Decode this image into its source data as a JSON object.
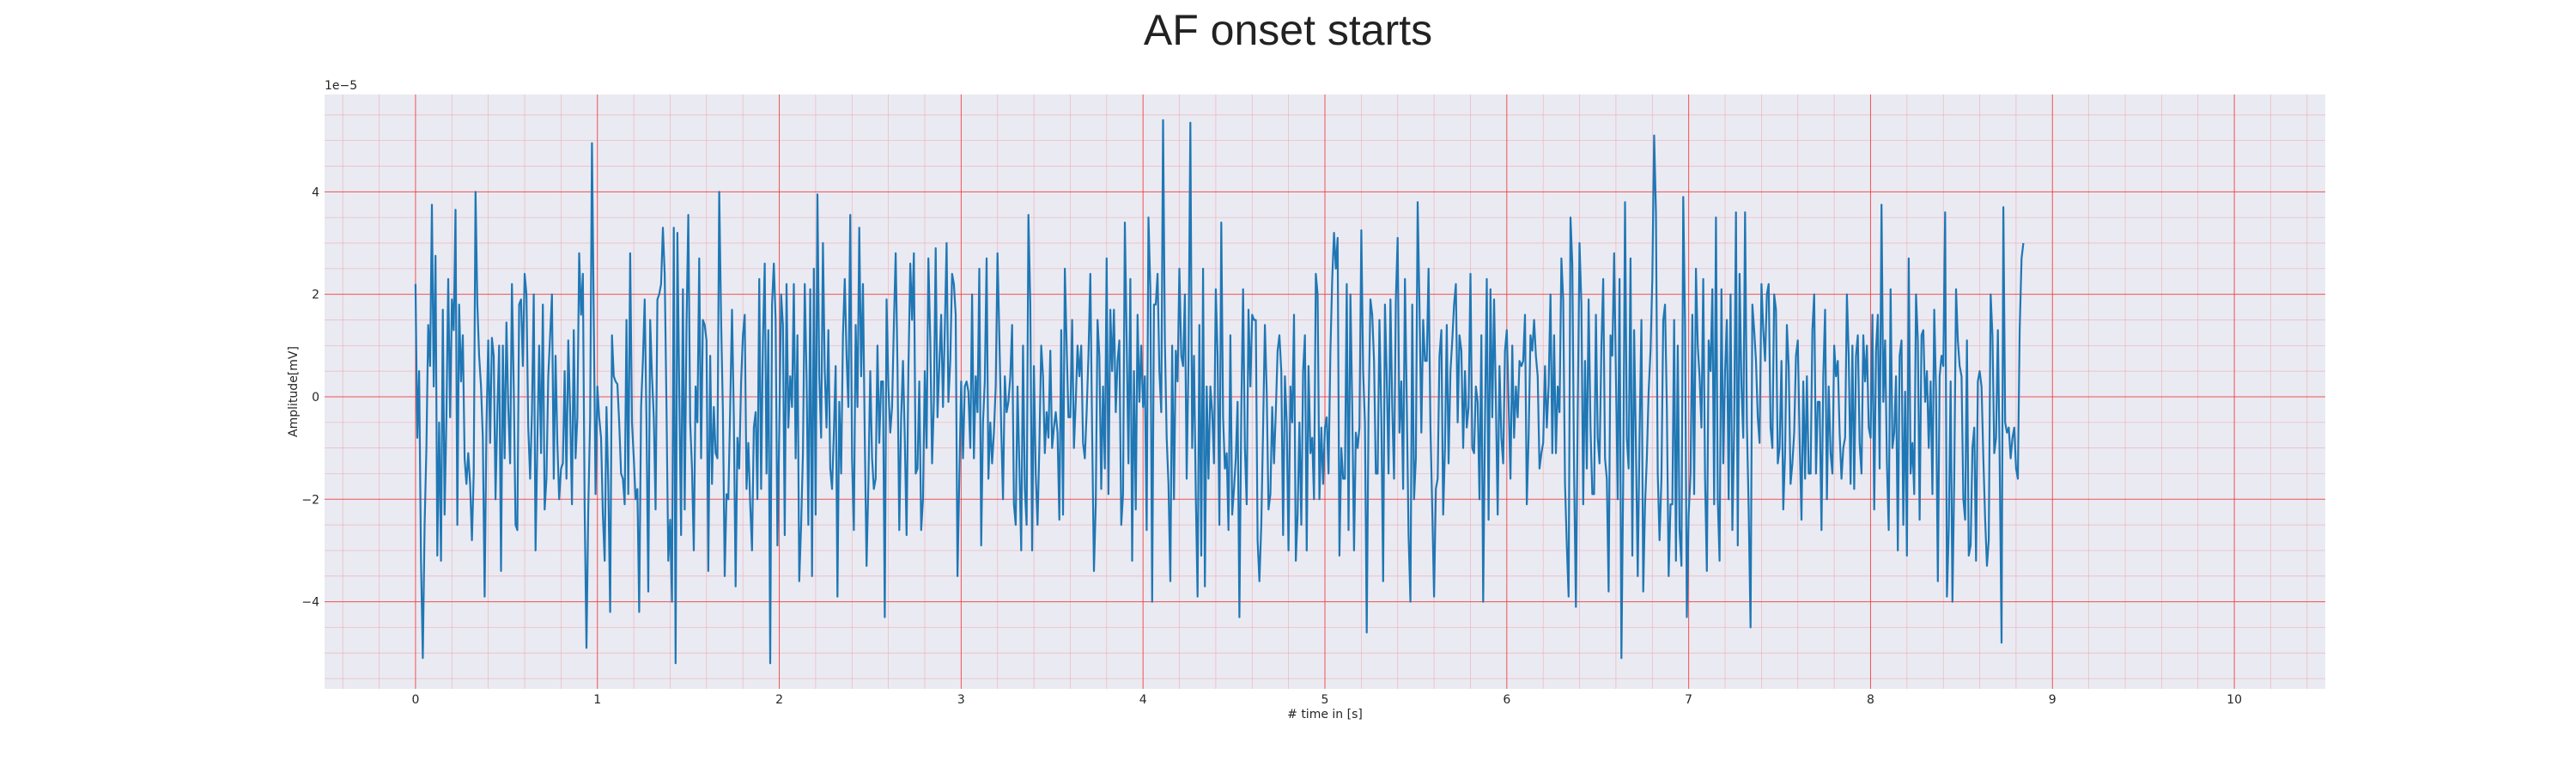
{
  "chart_data": {
    "type": "line",
    "title": "AF onset starts",
    "xlabel": "# time in [s]",
    "ylabel": "Amplitude[mV]",
    "y_offset_label": "1e−5",
    "xlim": [
      -0.5,
      10.5
    ],
    "ylim": [
      -5.7,
      5.9
    ],
    "y_scale_factor": 1e-05,
    "x_ticks": [
      0,
      1,
      2,
      3,
      4,
      5,
      6,
      7,
      8,
      9,
      10
    ],
    "x_tick_labels": [
      "0",
      "1",
      "2",
      "3",
      "4",
      "5",
      "6",
      "7",
      "8",
      "9",
      "10"
    ],
    "y_ticks": [
      -4,
      -2,
      0,
      2,
      4
    ],
    "y_tick_labels": [
      "−4",
      "−2",
      "0",
      "2",
      "4"
    ],
    "grid": true,
    "minor_grid": true,
    "legend": "none",
    "colors": {
      "plot_background": "#eaeaf2",
      "series": "#1f77b4",
      "major_grid": "#ee3a3a",
      "minor_grid": "#f2a0a8"
    },
    "series": [
      {
        "sampling_rate_hz": 100,
        "x_start": 0,
        "values": [
          2.2,
          -0.8,
          0.5,
          -3.2,
          -5.1,
          -2.5,
          -1.0,
          1.4,
          0.6,
          3.75,
          0.2,
          2.75,
          -3.1,
          -0.5,
          -3.2,
          1.7,
          -2.3,
          -0.4,
          2.3,
          -0.4,
          1.9,
          1.3,
          3.65,
          -2.5,
          1.8,
          0.3,
          1.2,
          -1.2,
          -1.7,
          -1.1,
          -1.7,
          -2.8,
          -1.5,
          4.0,
          1.8,
          0.8,
          0.2,
          -0.8,
          -3.9,
          -0.6,
          1.1,
          -0.9,
          1.15,
          0.8,
          -2.0,
          -0.3,
          1.0,
          -3.4,
          1.0,
          -1.2,
          1.45,
          -0.2,
          -1.3,
          2.2,
          0.2,
          -2.5,
          -2.6,
          1.8,
          1.9,
          0.6,
          2.4,
          2.0,
          -0.6,
          -1.6,
          -0.3,
          2.0,
          -3.0,
          -0.9,
          1.0,
          -1.1,
          1.8,
          -2.2,
          -1.6,
          0.4,
          1.2,
          2.0,
          -1.6,
          0.8,
          -0.9,
          -2.0,
          -1.4,
          -1.3,
          0.5,
          -1.6,
          1.1,
          -0.3,
          -2.1,
          1.3,
          -1.2,
          -0.4,
          2.8,
          1.6,
          2.4,
          -2.2,
          -4.9,
          -2.2,
          -0.4,
          4.95,
          1.5,
          -1.9,
          0.2,
          -0.4,
          -0.8,
          -2.3,
          -3.2,
          -0.2,
          -1.7,
          -4.2,
          1.2,
          0.4,
          0.3,
          0.25,
          -0.5,
          -1.5,
          -1.6,
          -2.1,
          1.5,
          -1.9,
          2.8,
          -0.5,
          -1.2,
          -2.0,
          -1.8,
          -4.2,
          -0.2,
          0.7,
          1.9,
          -0.5,
          -3.8,
          1.5,
          0.4,
          -0.4,
          -2.2,
          1.9,
          2.0,
          2.2,
          3.3,
          2.4,
          -0.2,
          -3.2,
          -2.4,
          -4.0,
          3.3,
          -5.2,
          3.2,
          0.2,
          -2.7,
          2.1,
          -2.2,
          1.4,
          3.55,
          -0.5,
          -1.4,
          -3.0,
          0.2,
          -0.5,
          2.7,
          -1.2,
          1.5,
          1.4,
          1.1,
          -3.4,
          0.8,
          -1.7,
          -0.2,
          -1.1,
          -1.2,
          4.0,
          1.5,
          -0.3,
          -3.5,
          -1.9,
          -2.0,
          -0.2,
          1.7,
          -0.4,
          -3.7,
          -0.8,
          -1.4,
          0.3,
          1.2,
          1.6,
          -1.8,
          -0.9,
          -2.1,
          -3.0,
          -0.6,
          -0.3,
          -2.0,
          2.3,
          -1.8,
          1.1,
          2.6,
          -1.5,
          1.3,
          -5.2,
          1.8,
          2.6,
          1.5,
          -2.9,
          -0.7,
          2.0,
          1.4,
          -2.7,
          2.2,
          -0.6,
          0.4,
          -0.2,
          2.2,
          -1.2,
          1.2,
          -3.6,
          -2.5,
          -1.1,
          2.2,
          0.4,
          -2.5,
          2.1,
          -3.5,
          2.5,
          -2.3,
          3.95,
          0.4,
          -0.8,
          3.0,
          0.5,
          -0.6,
          1.3,
          -1.4,
          -1.8,
          -0.7,
          0.6,
          -3.9,
          -0.1,
          -1.5,
          1.2,
          2.3,
          0.8,
          -0.2,
          3.55,
          -1.2,
          -2.6,
          1.4,
          -0.2,
          3.3,
          0.4,
          2.2,
          -0.8,
          -3.3,
          -1.7,
          0.5,
          -1.2,
          -1.8,
          -1.6,
          1.0,
          -0.9,
          0.3,
          0.3,
          -4.3,
          1.9,
          0.2,
          -0.7,
          -0.2,
          1.4,
          2.8,
          0.6,
          -2.6,
          -0.4,
          0.7,
          -0.8,
          -2.7,
          0.5,
          2.6,
          1.5,
          2.8,
          -1.5,
          -1.4,
          0.3,
          -2.6,
          -2.0,
          0.5,
          -1.0,
          2.7,
          1.1,
          -1.3,
          -0.1,
          2.9,
          -0.4,
          0.6,
          1.6,
          -0.2,
          1.3,
          3.0,
          -0.1,
          0.7,
          2.4,
          2.2,
          1.6,
          -3.5,
          -1.6,
          0.3,
          -1.2,
          0.2,
          0.3,
          0.1,
          -1.0,
          2.0,
          -1.2,
          0.4,
          -0.3,
          2.5,
          -2.9,
          -0.5,
          0.3,
          2.7,
          -1.6,
          -0.5,
          -1.3,
          -0.7,
          0.2,
          2.8,
          1.2,
          -0.6,
          -2.0,
          0.4,
          -0.3,
          -0.1,
          0.4,
          1.4,
          -2.1,
          -2.5,
          0.2,
          -1.3,
          -3.0,
          1.0,
          -1.8,
          -2.5,
          3.55,
          1.8,
          -3.0,
          0.6,
          -1.5,
          -2.5,
          -1.0,
          1.0,
          0.4,
          -1.1,
          -0.3,
          -0.8,
          0.9,
          -1.0,
          -0.6,
          -0.3,
          -0.7,
          -2.4,
          1.3,
          -2.3,
          2.5,
          1.0,
          -0.4,
          -0.4,
          1.5,
          -1.0,
          -0.1,
          1.0,
          0.4,
          1.0,
          -0.9,
          -1.2,
          -0.3,
          0.8,
          2.4,
          -0.7,
          -3.4,
          -2.1,
          1.5,
          0.8,
          -1.8,
          0.2,
          -1.4,
          2.7,
          -1.9,
          1.7,
          0.5,
          1.7,
          -0.3,
          0.7,
          1.1,
          -2.5,
          -1.9,
          3.4,
          1.1,
          -1.3,
          2.3,
          -3.2,
          0.5,
          -2.2,
          1.6,
          -0.1,
          1.0,
          -0.2,
          0.4,
          -2.6,
          3.5,
          2.1,
          -4.0,
          1.8,
          1.8,
          2.4,
          0.5,
          -0.3,
          5.4,
          1.1,
          -0.8,
          -1.7,
          -3.6,
          1.0,
          -2.0,
          0.9,
          0.3,
          2.5,
          0.8,
          0.6,
          2.0,
          -1.6,
          0.7,
          5.35,
          -1.0,
          0.8,
          -1.9,
          -3.9,
          1.4,
          -3.1,
          2.5,
          -3.7,
          0.2,
          -1.6,
          0.2,
          -0.3,
          -1.3,
          2.1,
          0.8,
          -2.5,
          3.4,
          -0.4,
          -1.4,
          -1.1,
          -2.6,
          1.2,
          -2.3,
          -1.8,
          -1.2,
          -0.1,
          -4.3,
          -0.3,
          2.1,
          -1.0,
          -2.1,
          1.7,
          0.2,
          1.6,
          1.5,
          1.5,
          -2.8,
          -3.6,
          -2.5,
          -0.6,
          1.4,
          0.1,
          -2.2,
          -1.9,
          -0.2,
          -1.3,
          -0.3,
          0.9,
          1.2,
          0.5,
          -2.7,
          0.4,
          -0.5,
          -3.0,
          0.2,
          -0.5,
          1.6,
          -3.2,
          -2.3,
          -0.5,
          -2.5,
          0.5,
          1.2,
          -3.0,
          0.6,
          -1.1,
          -0.8,
          -2.0,
          2.4,
          2.0,
          -2.0,
          -0.6,
          -1.7,
          -0.6,
          -0.4,
          -1.5,
          0.9,
          2.3,
          3.2,
          2.5,
          3.1,
          -3.1,
          -1.0,
          -1.6,
          -1.6,
          2.2,
          -2.6,
          2.0,
          -0.2,
          -3.0,
          -0.7,
          -1.0,
          -0.6,
          3.25,
          0.5,
          -0.5,
          -4.6,
          -0.3,
          1.9,
          1.6,
          0.7,
          -1.5,
          -1.5,
          1.5,
          -0.4,
          -3.6,
          1.8,
          0.4,
          -1.5,
          1.9,
          -0.2,
          -1.6,
          1.9,
          3.1,
          -0.7,
          0.3,
          -1.8,
          2.3,
          -0.1,
          -2.7,
          -4.0,
          1.8,
          -2.0,
          -1.2,
          3.8,
          1.8,
          -0.7,
          1.5,
          0.7,
          0.7,
          2.5,
          -0.6,
          -2.2,
          -3.9,
          -1.8,
          -1.6,
          0.8,
          1.3,
          -2.3,
          -1.0,
          1.4,
          -1.3,
          0.5,
          1.1,
          1.8,
          2.2,
          -0.5,
          1.2,
          0.9,
          -1.0,
          0.5,
          -0.6,
          -0.2,
          2.4,
          -1.0,
          -1.1,
          0.2,
          -0.1,
          -2.0,
          1.2,
          -4.0,
          -0.5,
          2.3,
          -2.4,
          2.1,
          -0.4,
          1.9,
          -0.1,
          -2.3,
          0.6,
          -0.8,
          -1.3,
          0.9,
          1.3,
          -0.1,
          -1.6,
          1.0,
          -0.8,
          0.2,
          -0.4,
          0.7,
          0.6,
          0.7,
          1.6,
          -2.1,
          -0.8,
          1.2,
          0.9,
          1.5,
          0.8,
          0.4,
          -1.4,
          -1.1,
          -0.9,
          0.6,
          -0.6,
          0.2,
          2.0,
          -1.1,
          1.2,
          -1.1,
          0.2,
          -0.3,
          2.7,
          1.9,
          -1.7,
          -2.9,
          -3.9,
          3.5,
          2.6,
          -1.5,
          -4.1,
          -0.3,
          3.0,
          1.8,
          -2.1,
          0.7,
          -1.4,
          1.9,
          -0.6,
          -1.9,
          -1.9,
          1.6,
          -0.8,
          -1.3,
          1.0,
          2.3,
          -1.2,
          -1.6,
          -3.8,
          1.2,
          0.8,
          2.8,
          0.4,
          -2.0,
          2.3,
          -5.1,
          -1.6,
          3.8,
          -0.8,
          -1.4,
          2.7,
          -3.1,
          1.3,
          -1.0,
          -3.5,
          -0.8,
          1.5,
          -3.8,
          -2.1,
          -1.2,
          0.1,
          0.9,
          2.3,
          5.1,
          3.6,
          -1.5,
          -2.8,
          -1.6,
          1.5,
          1.8,
          -0.2,
          -3.5,
          -2.1,
          -2.1,
          1.5,
          -3.2,
          1.0,
          -2.6,
          -3.3,
          3.9,
          1.4,
          -4.3,
          -2.3,
          -1.5,
          1.6,
          -1.9,
          2.5,
          1.0,
          0.4,
          -0.6,
          2.3,
          -1.6,
          -3.4,
          1.1,
          0.5,
          2.1,
          -2.1,
          3.5,
          -2.0,
          -3.2,
          2.1,
          -1.3,
          0.5,
          1.5,
          -2.0,
          2.0,
          -2.6,
          -0.6,
          3.6,
          -2.9,
          2.4,
          0.2,
          -0.8,
          3.6,
          -0.5,
          -2.2,
          -4.5,
          1.8,
          1.3,
          0.7,
          -0.4,
          -0.9,
          2.2,
          1.3,
          0.7,
          2.0,
          2.2,
          -0.6,
          -1.0,
          2.0,
          1.7,
          -1.3,
          -1.0,
          0.7,
          -2.2,
          -1.1,
          1.4,
          0.6,
          -1.7,
          -1.3,
          -0.7,
          0.8,
          1.1,
          -0.8,
          -2.4,
          0.3,
          -1.6,
          0.4,
          -1.5,
          -1.5,
          1.3,
          2.0,
          -1.5,
          -0.1,
          -0.1,
          -2.6,
          0.4,
          1.7,
          -2.0,
          0.2,
          -1.1,
          -1.5,
          1.0,
          0.4,
          0.7,
          -0.7,
          -1.6,
          -1.0,
          -0.8,
          2.0,
          0.8,
          -1.7,
          1.0,
          -1.8,
          0.8,
          1.2,
          -0.9,
          -1.5,
          1.2,
          0.3,
          1.0,
          -0.6,
          -0.8,
          1.6,
          -2.2,
          0.9,
          1.6,
          -1.4,
          3.75,
          -0.1,
          1.1,
          -1.3,
          -2.6,
          2.1,
          -1.0,
          -0.7,
          0.4,
          -3.0,
          0.8,
          1.1,
          -2.5,
          0.1,
          -3.1,
          2.7,
          -1.5,
          -0.9,
          -1.9,
          2.0,
          1.1,
          -2.4,
          1.2,
          1.3,
          -0.1,
          0.5,
          -1.0,
          0.3,
          -1.9,
          1.7,
          0.1,
          -3.6,
          0.4,
          0.8,
          0.6,
          3.6,
          -3.9,
          -2.6,
          0.3,
          -4.0,
          -1.6,
          2.1,
          1.1,
          0.6,
          0.4,
          -2.0,
          -2.4,
          1.1,
          -3.1,
          -2.9,
          -1.0,
          -0.6,
          -3.2,
          0.3,
          0.5,
          0.2,
          -1.2,
          -2.4,
          -3.3,
          -2.8,
          2.0,
          1.2,
          -1.1,
          -0.8,
          1.3,
          -1.2,
          -4.8,
          3.7,
          -0.5,
          -0.7,
          -0.6,
          -1.2,
          -0.8,
          -0.6,
          -1.4,
          -1.6,
          1.3,
          2.7,
          3.0
        ]
      }
    ]
  }
}
